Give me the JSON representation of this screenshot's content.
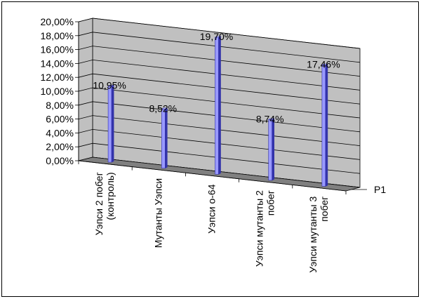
{
  "chart_data": {
    "type": "bar",
    "title": "",
    "xlabel": "",
    "ylabel": "",
    "ylim": [
      0,
      20
    ],
    "y_tick_values": [
      0,
      2,
      4,
      6,
      8,
      10,
      12,
      14,
      16,
      18,
      20
    ],
    "y_tick_labels": [
      "0,00%",
      "2,00%",
      "4,00%",
      "6,00%",
      "8,00%",
      "10,00%",
      "12,00%",
      "14,00%",
      "16,00%",
      "18,00%",
      "20,00%"
    ],
    "categories": [
      [
        "Уэпси 2 побег",
        "(контроль)"
      ],
      [
        "Мутанты Уэпси"
      ],
      [
        "Уэпси о-64"
      ],
      [
        "Уэпси мутанты 2",
        "побег"
      ],
      [
        "Уэпси мутанты 3",
        "побег"
      ]
    ],
    "series": [
      {
        "name": "Р1",
        "values": [
          10.95,
          8.52,
          19.7,
          8.74,
          17.46
        ],
        "data_labels": [
          "10,95%",
          "8,52%",
          "19,70%",
          "8,74%",
          "17,46%"
        ]
      }
    ],
    "legend_position": "right",
    "grid": true,
    "style": "3d-cylinder",
    "colors": {
      "wall": "#c0c0c0",
      "floor": "#808080",
      "grid": "#000000",
      "bar_front": "#9999ff",
      "bar_dark": "#3333aa",
      "bar_top": "#ccccff",
      "frame": "#000000"
    }
  }
}
